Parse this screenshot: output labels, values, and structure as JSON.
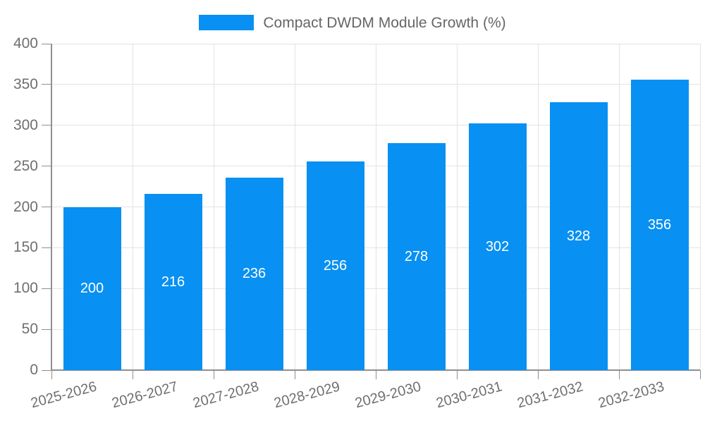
{
  "legend": {
    "label": "Compact DWDM Module Growth (%)"
  },
  "chart_data": {
    "type": "bar",
    "title": "Compact DWDM Module Growth (%)",
    "categories": [
      "2025-2026",
      "2026-2027",
      "2027-2028",
      "2028-2029",
      "2029-2030",
      "2030-2031",
      "2031-2032",
      "2032-2033"
    ],
    "series": [
      {
        "name": "Compact DWDM Module Growth (%)",
        "values": [
          200,
          216,
          236,
          256,
          278,
          302,
          328,
          356
        ]
      }
    ],
    "xlabel": "",
    "ylabel": "",
    "ylim": [
      0,
      400
    ],
    "yticks": [
      0,
      50,
      100,
      150,
      200,
      250,
      300,
      350,
      400
    ],
    "grid": true,
    "legend_position": "top",
    "xtick_rotation_deg": -15,
    "bar_value_labels_inside": true
  },
  "colors": {
    "bar": "#0890f2",
    "grid": "#e3e3e3",
    "axis": "#8f8f8f",
    "tick_text": "#6f6f6f",
    "legend_text": "#666666",
    "bar_label": "#ffffff",
    "background": "#ffffff"
  }
}
